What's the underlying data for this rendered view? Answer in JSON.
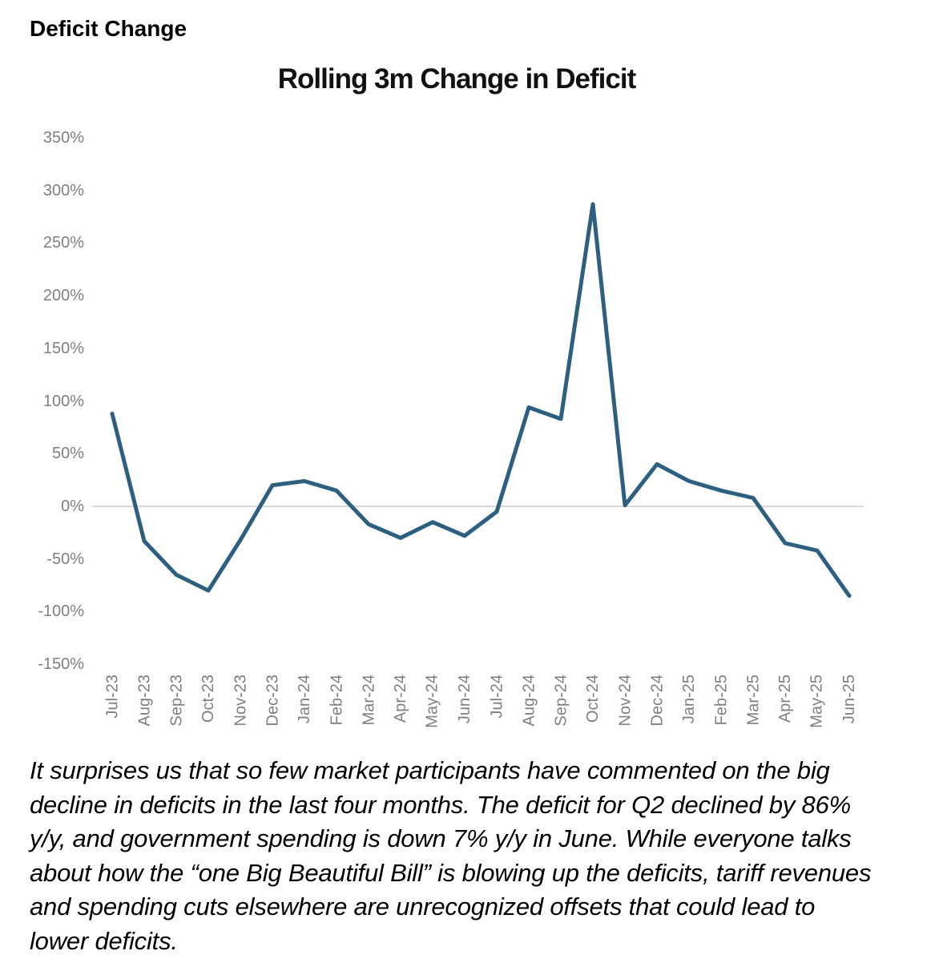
{
  "header": {
    "title": "Deficit Change"
  },
  "chart_data": {
    "type": "line",
    "title": "Rolling 3m Change in Deficit",
    "xlabel": "",
    "ylabel": "",
    "categories": [
      "Jul-23",
      "Aug-23",
      "Sep-23",
      "Oct-23",
      "Nov-23",
      "Dec-23",
      "Jan-24",
      "Feb-24",
      "Mar-24",
      "Apr-24",
      "May-24",
      "Jun-24",
      "Jul-24",
      "Aug-24",
      "Sep-24",
      "Oct-24",
      "Nov-24",
      "Dec-24",
      "Jan-25",
      "Feb-25",
      "Mar-25",
      "Apr-25",
      "May-25",
      "Jun-25"
    ],
    "values": [
      88,
      -33,
      -65,
      -80,
      -32,
      20,
      24,
      15,
      -17,
      -30,
      -15,
      -28,
      -5,
      94,
      83,
      287,
      1,
      40,
      24,
      15,
      8,
      -35,
      -42,
      -85
    ],
    "values_unit": "percent",
    "ylim": [
      -150,
      350
    ],
    "ytick_step": 50,
    "ytick_labels": [
      "350%",
      "300%",
      "250%",
      "200%",
      "150%",
      "100%",
      "50%",
      "0%",
      "-50%",
      "-100%",
      "-150%"
    ],
    "grid": "zero-line-only",
    "legend": "none",
    "line_color": "#2d5f80",
    "zero_line_color": "#d9d9d9",
    "tick_color": "#7f7f7f"
  },
  "commentary": {
    "lines": [
      "It surprises us that so few market participants have commented on the big",
      "decline in deficits in the last four months. The deficit for Q2 declined by 86%",
      "y/y, and government spending is down 7% y/y in June. While everyone talks",
      "about how the “one Big Beautiful Bill” is blowing up the deficits, tariff revenues",
      "and spending cuts elsewhere are unrecognized offsets that could lead to",
      "lower deficits."
    ]
  }
}
